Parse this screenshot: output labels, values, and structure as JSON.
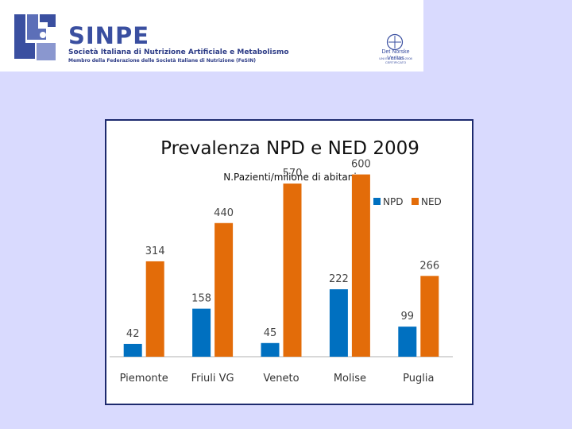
{
  "header": {
    "logo_text": "SINPE",
    "subtitle": "Società Italiana di Nutrizione Artificiale e Metabolismo",
    "subtitle2": "Membro della Federazione delle Società Italiane di Nutrizione (FeSIN)",
    "cert_name": "Det Norske Veritas",
    "cert_line": "UNI EN ISO 9001:2008",
    "cert_line2": "CERTIFICATO",
    "colors": {
      "brand": "#3a4fa0",
      "background": "#d9dafe"
    }
  },
  "chart_data": {
    "type": "bar",
    "title": "Prevalenza NPD e NED 2009",
    "subtitle": "N.Pazienti/milione di abitani",
    "categories": [
      "Piemonte",
      "Friuli VG",
      "Veneto",
      "Molise",
      "Puglia"
    ],
    "series": [
      {
        "name": "NPD",
        "color": "#0070c0",
        "values": [
          42,
          158,
          45,
          222,
          99
        ]
      },
      {
        "name": "NED",
        "color": "#e36c09",
        "values": [
          314,
          440,
          570,
          600,
          266
        ]
      }
    ],
    "ylim": [
      0,
      680
    ],
    "xlabel": "",
    "ylabel": "",
    "grid": false,
    "legend": "top-right"
  }
}
